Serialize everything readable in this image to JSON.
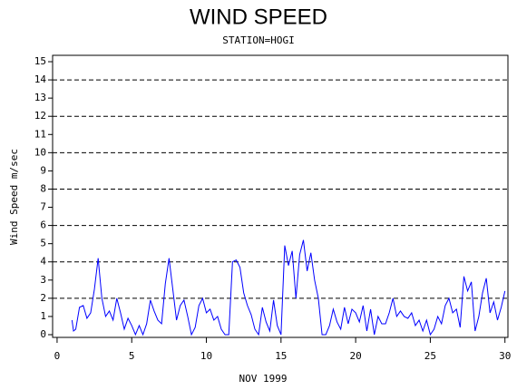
{
  "chart_data": {
    "type": "line",
    "title": "WIND SPEED",
    "subtitle": "STATION=HOGI",
    "y_label": "Wind Speed m/sec",
    "x_label": "NOV 1999",
    "xlim": [
      -0.3,
      30.2
    ],
    "xticks": [
      0,
      5,
      10,
      15,
      20,
      25,
      30
    ],
    "ylim": [
      -0.15,
      15.35
    ],
    "yticks": [
      0,
      1,
      2,
      3,
      4,
      5,
      6,
      7,
      8,
      9,
      10,
      11,
      12,
      13,
      14,
      15
    ],
    "grid_lines": [
      2,
      4,
      6,
      8,
      10,
      12,
      14
    ],
    "series": [
      {
        "color": "#0000ff",
        "x": [
          1.0,
          1.1,
          1.25,
          1.5,
          1.75,
          2.0,
          2.25,
          2.5,
          2.75,
          3.0,
          3.25,
          3.5,
          3.75,
          4.0,
          4.25,
          4.5,
          4.75,
          5.0,
          5.25,
          5.5,
          5.75,
          6.0,
          6.25,
          6.5,
          6.75,
          7.0,
          7.25,
          7.5,
          7.75,
          8.0,
          8.25,
          8.5,
          8.75,
          9.0,
          9.25,
          9.5,
          9.75,
          10.0,
          10.25,
          10.5,
          10.75,
          11.0,
          11.25,
          11.5,
          11.75,
          12.0,
          12.25,
          12.5,
          12.75,
          13.0,
          13.25,
          13.5,
          13.75,
          14.0,
          14.25,
          14.5,
          14.75,
          15.0,
          15.25,
          15.5,
          15.75,
          16.0,
          16.25,
          16.5,
          16.75,
          17.0,
          17.25,
          17.5,
          17.75,
          18.0,
          18.25,
          18.5,
          18.75,
          19.0,
          19.25,
          19.5,
          19.75,
          20.0,
          20.25,
          20.5,
          20.75,
          21.0,
          21.25,
          21.5,
          21.75,
          22.0,
          22.25,
          22.5,
          22.75,
          23.0,
          23.25,
          23.5,
          23.75,
          24.0,
          24.25,
          24.5,
          24.75,
          25.0,
          25.25,
          25.5,
          25.75,
          26.0,
          26.25,
          26.5,
          26.75,
          27.0,
          27.25,
          27.5,
          27.75,
          28.0,
          28.25,
          28.5,
          28.75,
          29.0,
          29.25,
          29.5,
          29.75,
          30.0
        ],
        "values": [
          0.8,
          0.2,
          0.3,
          1.5,
          1.6,
          0.9,
          1.2,
          2.5,
          4.2,
          2.0,
          1.0,
          1.3,
          0.8,
          2.0,
          1.2,
          0.3,
          0.9,
          0.5,
          0.0,
          0.5,
          0.0,
          0.6,
          1.9,
          1.3,
          0.8,
          0.6,
          2.8,
          4.2,
          2.5,
          0.8,
          1.6,
          1.9,
          1.0,
          0.0,
          0.4,
          1.6,
          2.0,
          1.2,
          1.4,
          0.8,
          1.0,
          0.3,
          0.0,
          0.0,
          4.0,
          4.1,
          3.7,
          2.3,
          1.6,
          1.1,
          0.3,
          0.0,
          1.5,
          0.7,
          0.2,
          1.9,
          0.5,
          0.0,
          4.9,
          3.8,
          4.6,
          2.0,
          4.4,
          5.2,
          3.5,
          4.5,
          3.0,
          2.0,
          0.0,
          0.0,
          0.5,
          1.4,
          0.7,
          0.3,
          1.5,
          0.6,
          1.4,
          1.2,
          0.7,
          1.6,
          0.2,
          1.4,
          0.0,
          1.0,
          0.6,
          0.6,
          1.2,
          2.0,
          1.0,
          1.3,
          1.0,
          0.9,
          1.2,
          0.5,
          0.8,
          0.2,
          0.8,
          0.0,
          0.3,
          1.0,
          0.6,
          1.6,
          2.0,
          1.2,
          1.4,
          0.4,
          3.2,
          2.4,
          2.9,
          0.2,
          1.0,
          2.3,
          3.1,
          1.2,
          1.8,
          0.8,
          1.5,
          2.4
        ]
      }
    ]
  }
}
